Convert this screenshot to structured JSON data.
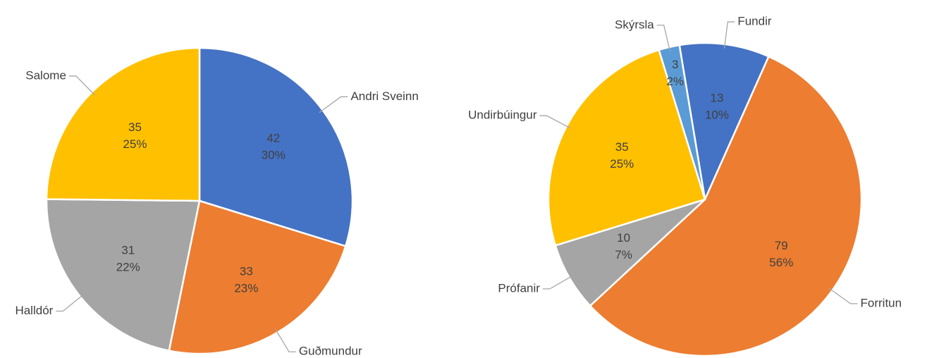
{
  "chart_data": [
    {
      "type": "pie",
      "categories": [
        "Andri Sveinn",
        "Guðmundur",
        "Halldór",
        "Salome"
      ],
      "values": [
        42,
        33,
        31,
        35
      ],
      "percent_labels": [
        "30%",
        "23%",
        "22%",
        "25%"
      ],
      "colors": [
        "#4472c4",
        "#ed7d31",
        "#a5a5a5",
        "#ffc000"
      ]
    },
    {
      "type": "pie",
      "categories": [
        "Fundir",
        "Forritun",
        "Prófanir",
        "Undirbúingur",
        "Skýrsla"
      ],
      "values": [
        13,
        79,
        10,
        35,
        3
      ],
      "percent_labels": [
        "10%",
        "56%",
        "7%",
        "25%",
        "2%"
      ],
      "colors": [
        "#4472c4",
        "#ed7d31",
        "#a5a5a5",
        "#ffc000",
        "#5b9bd5"
      ]
    }
  ]
}
